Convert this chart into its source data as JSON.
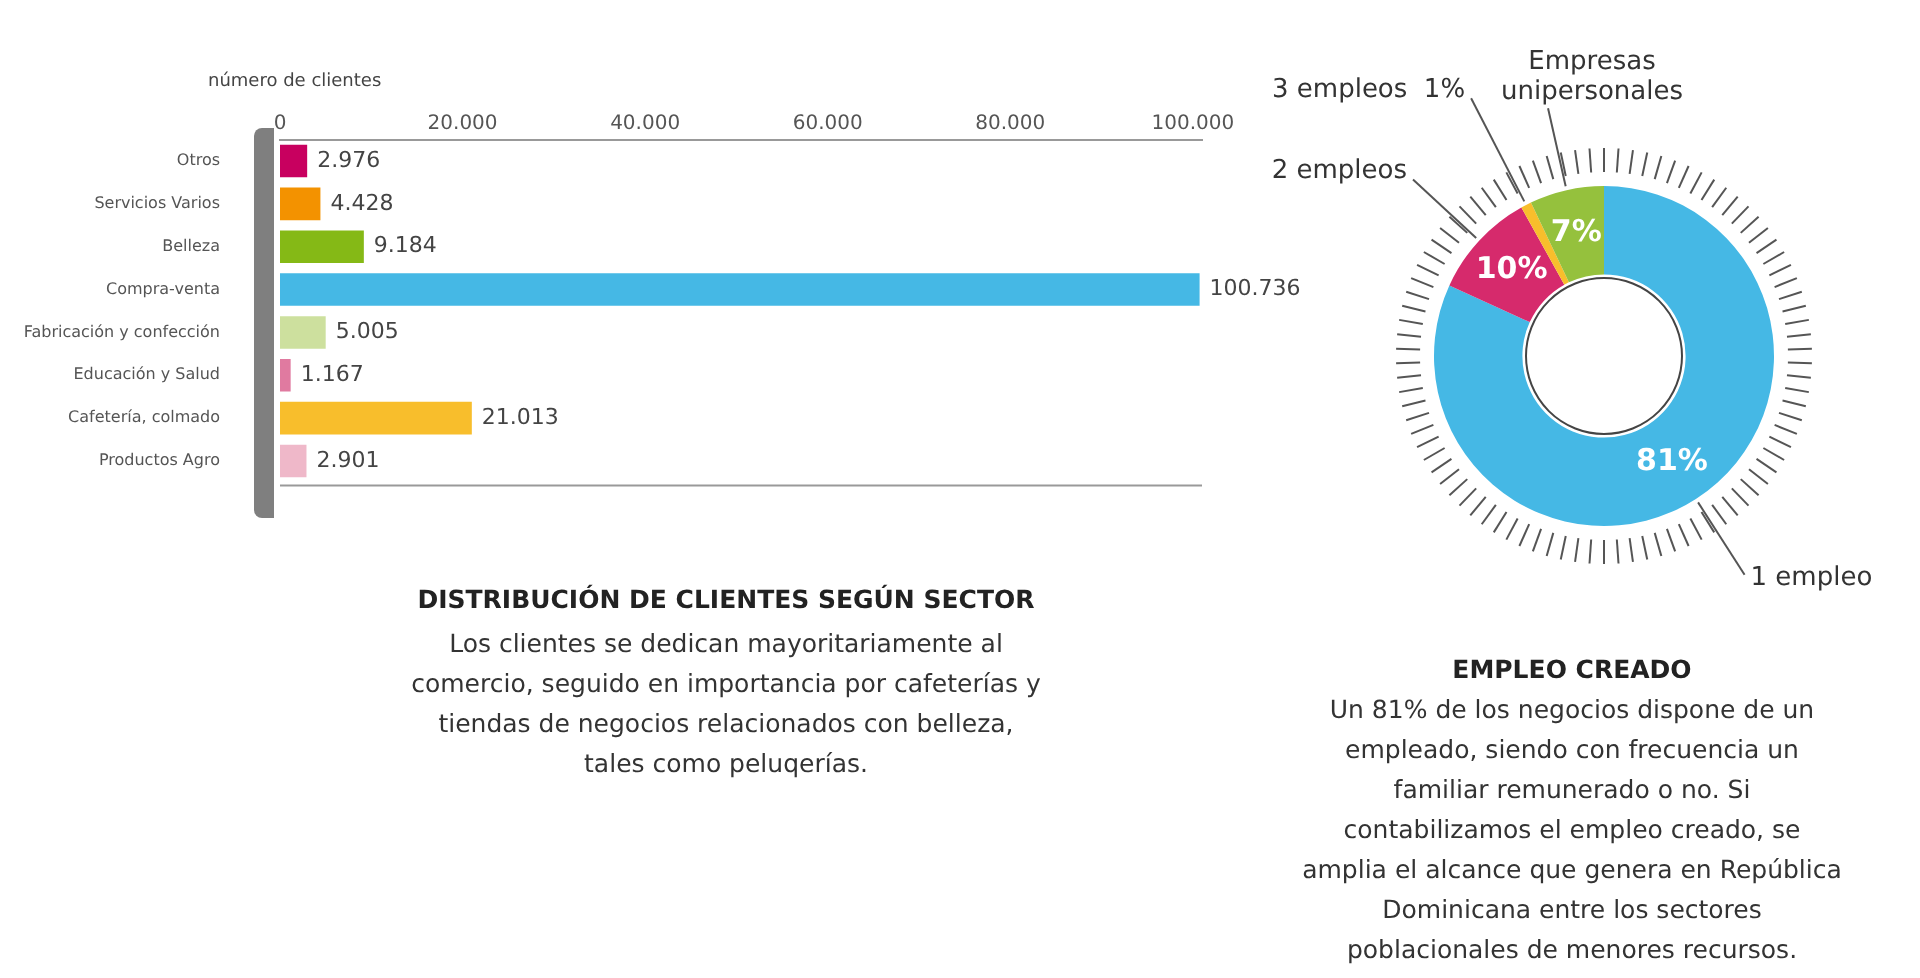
{
  "chart_data": [
    {
      "type": "bar",
      "orientation": "horizontal",
      "title": "DISTRIBUCIÓN DE CLIENTES SEGÚN SECTOR",
      "xlabel": "número de clientes",
      "annotations": [
        "Los clientes se dedican mayoritariamente al comercio, seguido en importancia por cafeterías y tiendas de negocios relacionados con belleza, tales como peluqerías."
      ],
      "categories": [
        "Otros",
        "Servicios Varios",
        "Belleza",
        "Compra-venta",
        "Fabricación y confección",
        "Educación y Salud",
        "Cafetería, colmado",
        "Productos Agro"
      ],
      "values": [
        2976,
        4428,
        9184,
        100736,
        5005,
        1167,
        21013,
        2901
      ],
      "value_labels": [
        "2.976",
        "4.428",
        "9.184",
        "100.736",
        "5.005",
        "1.167",
        "21.013",
        "2.901"
      ],
      "colors": [
        "#c8005f",
        "#f39200",
        "#85b916",
        "#45b8e5",
        "#cde09e",
        "#e07aa0",
        "#f8be2c",
        "#efb8c9"
      ],
      "xlim": [
        0,
        101000
      ],
      "xticks": [
        0,
        {
          "value": 20000,
          "label": "20.000"
        },
        {
          "value": 40000,
          "label": "40.000"
        },
        {
          "value": 60000,
          "label": "60.000"
        },
        {
          "value": 80000,
          "label": "80.000"
        },
        {
          "value": 100000,
          "label": "100.000"
        }
      ],
      "grid": false,
      "legend": false
    },
    {
      "type": "donut",
      "title": "EMPLEO CREADO",
      "annotations": [
        "Un 81% de los negocios dispone de un empleado, siendo con frecuencia un familiar remunerado o no. Si contabilizamos el empleo creado, se amplia el alcance que genera en República Dominicana entre los sectores poblacionales de menores recursos."
      ],
      "categories": [
        "1 empleo",
        "2 empleos",
        "3 empleos",
        "Empresas unipersonales"
      ],
      "values": [
        81,
        10,
        1,
        7
      ],
      "value_labels": [
        "81%",
        "10%",
        "1%",
        "7%"
      ],
      "colors": [
        "#45b8e5",
        "#d62a6c",
        "#f8be2c",
        "#95c13d"
      ],
      "legend": false
    }
  ]
}
